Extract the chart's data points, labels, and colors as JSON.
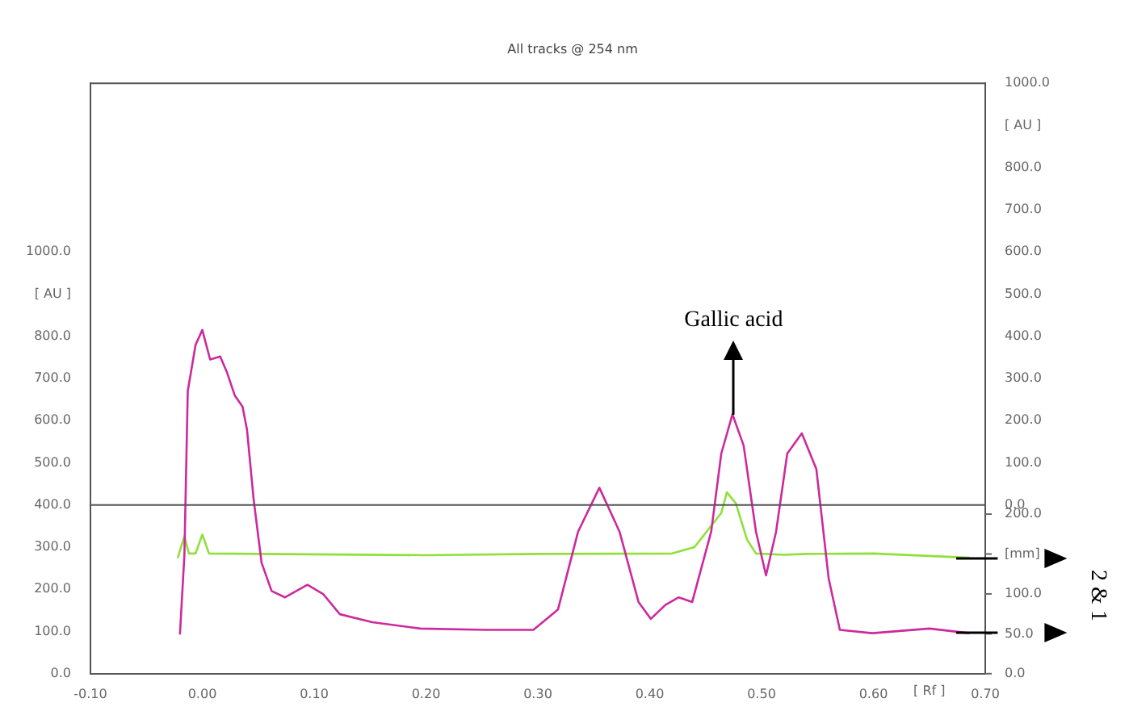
{
  "chart_data": {
    "type": "line",
    "title": "All tracks @ 254 nm",
    "xlabel": "[ Rf ]",
    "marker": "none",
    "xlim": [
      -0.1,
      0.7
    ],
    "xticks": [
      {
        "value": -0.1,
        "label": "-0.10"
      },
      {
        "value": 0,
        "label": "0.00"
      },
      {
        "value": 0.1,
        "label": "0.10"
      },
      {
        "value": 0.2,
        "label": "0.20"
      },
      {
        "value": 0.3,
        "label": "0.30"
      },
      {
        "value": 0.4,
        "label": "0.40"
      },
      {
        "value": 0.5,
        "label": "0.50"
      },
      {
        "value": 0.6,
        "label": "0.60"
      },
      {
        "value": 0.7,
        "label": "0.70"
      }
    ],
    "ylim": [
      0,
      1400
    ],
    "yticks": [
      {
        "value": 0,
        "label": "0.0"
      },
      {
        "value": 100,
        "label": "100.0"
      },
      {
        "value": 200,
        "label": "200.0"
      },
      {
        "value": 300,
        "label": "300.0"
      },
      {
        "value": 400,
        "label": "400.0"
      },
      {
        "value": 500,
        "label": "500.0"
      },
      {
        "value": 600,
        "label": "600.0"
      },
      {
        "value": 700,
        "label": "700.0"
      },
      {
        "value": 800,
        "label": "800.0"
      },
      {
        "value": 900,
        "label": "[ AU ]"
      },
      {
        "value": 1000,
        "label": "1000.0"
      }
    ],
    "y2lim": [
      -400,
      1000
    ],
    "y2ticks": [
      {
        "value": 0,
        "label": "0.0"
      },
      {
        "value": 100,
        "label": "100.0"
      },
      {
        "value": 200,
        "label": "200.0"
      },
      {
        "value": 300,
        "label": "300.0"
      },
      {
        "value": 400,
        "label": "400.0"
      },
      {
        "value": 500,
        "label": "500.0"
      },
      {
        "value": 600,
        "label": "600.0"
      },
      {
        "value": 700,
        "label": "700.0"
      },
      {
        "value": 800,
        "label": "800.0"
      },
      {
        "value": 900,
        "label": "[ AU ]"
      },
      {
        "value": 1000,
        "label": "1000.0"
      }
    ],
    "y3lim": [
      0,
      740
    ],
    "y3ticks": [
      {
        "value": 0,
        "label": "0.0"
      },
      {
        "value": 50,
        "label": "50.0"
      },
      {
        "value": 100,
        "label": "100.0"
      },
      {
        "value": 150,
        "label": "[mm]"
      },
      {
        "value": 200,
        "label": "200.0"
      }
    ],
    "ref_lines": [
      {
        "axis": "y",
        "value": 400,
        "color": "#555555"
      }
    ],
    "series": [
      {
        "color": "#cc2a9c",
        "x": [
          -0.02,
          -0.016,
          -0.013,
          -0.006,
          0.0,
          0.007,
          0.016,
          0.022,
          0.029,
          0.036,
          0.04,
          0.046,
          0.053,
          0.062,
          0.074,
          0.094,
          0.108,
          0.123,
          0.152,
          0.195,
          0.253,
          0.296,
          0.318,
          0.336,
          0.355,
          0.373,
          0.39,
          0.401,
          0.414,
          0.426,
          0.438,
          0.455,
          0.464,
          0.474,
          0.484,
          0.495,
          0.504,
          0.513,
          0.523,
          0.536,
          0.549,
          0.56,
          0.57,
          0.599,
          0.65,
          0.686
        ],
        "values": [
          93,
          281,
          670,
          780,
          815,
          745,
          752,
          715,
          660,
          633,
          578,
          411,
          263,
          196,
          181,
          211,
          189,
          141,
          122,
          107,
          104,
          104,
          152,
          337,
          441,
          337,
          170,
          130,
          163,
          181,
          170,
          337,
          522,
          615,
          541,
          337,
          233,
          337,
          522,
          570,
          485,
          226,
          104,
          96,
          107,
          96
        ]
      },
      {
        "color": "#8fe03a",
        "x": [
          -0.022,
          -0.016,
          -0.012,
          -0.006,
          0.0,
          0.006,
          0.05,
          0.2,
          0.3,
          0.42,
          0.44,
          0.464,
          0.469,
          0.477,
          0.487,
          0.495,
          0.52,
          0.54,
          0.6,
          0.686
        ],
        "values": [
          274,
          326,
          285,
          285,
          330,
          285,
          284,
          281,
          284,
          285,
          300,
          381,
          430,
          404,
          318,
          285,
          282,
          284,
          285,
          275
        ]
      }
    ],
    "annotations": [
      {
        "text": "Gallic acid",
        "x": 0.475,
        "y": 615
      },
      "2 & 1"
    ]
  }
}
